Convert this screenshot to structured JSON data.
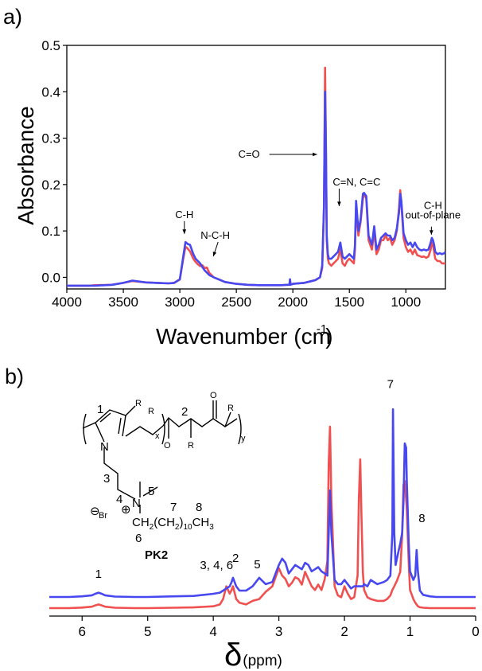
{
  "panel_a_label": "a)",
  "panel_b_label": "b)",
  "chart_data": [
    {
      "type": "line",
      "panel": "a)",
      "xlabel": "Wavenumber (cm",
      "xlabel_sup": "-1",
      "xlabel_end": ")",
      "ylabel": "Absorbance",
      "xlim": [
        4000,
        650
      ],
      "ylim": [
        -0.025,
        0.5
      ],
      "x_ticks": [
        4000,
        3500,
        3000,
        2500,
        2000,
        1500,
        1000
      ],
      "y_ticks": [
        "0.0",
        "0.1",
        "0.2",
        "0.3",
        "0.4",
        "0.5"
      ],
      "annotations": [
        {
          "text": "C=O",
          "x": 1715,
          "y": 0.265
        },
        {
          "text": "C=N, C=C",
          "x": 1590,
          "y": 0.205
        },
        {
          "text": "C-H",
          "x": 2960,
          "y": 0.128
        },
        {
          "text": "N-C-H",
          "x": 2760,
          "y": 0.083
        },
        {
          "text": "C-H",
          "x": 760,
          "y": 0.147
        },
        {
          "text": "out-of-plane",
          "x": 760,
          "y": 0.127
        }
      ],
      "series": [
        {
          "color": "#f05050",
          "x": [
            4000,
            3800,
            3750,
            3600,
            3500,
            3420,
            3300,
            3200,
            3100,
            3050,
            3000,
            2970,
            2950,
            2930,
            2910,
            2880,
            2860,
            2840,
            2820,
            2800,
            2780,
            2760,
            2740,
            2700,
            2650,
            2600,
            2500,
            2400,
            2300,
            2200,
            2100,
            2050,
            2030,
            2025,
            2020,
            2000,
            1900,
            1850,
            1800,
            1760,
            1740,
            1725,
            1715,
            1708,
            1700,
            1690,
            1680,
            1660,
            1640,
            1620,
            1600,
            1580,
            1560,
            1540,
            1520,
            1500,
            1480,
            1460,
            1450,
            1440,
            1420,
            1400,
            1380,
            1370,
            1350,
            1330,
            1300,
            1280,
            1260,
            1240,
            1220,
            1200,
            1180,
            1160,
            1140,
            1120,
            1100,
            1080,
            1060,
            1050,
            1040,
            1020,
            1000,
            980,
            960,
            940,
            920,
            900,
            880,
            860,
            840,
            820,
            800,
            780,
            770,
            760,
            750,
            740,
            720,
            700,
            680,
            660,
            650
          ],
          "y": [
            -0.018,
            -0.018,
            -0.017,
            -0.016,
            -0.012,
            -0.008,
            -0.011,
            -0.012,
            -0.013,
            -0.012,
            -0.005,
            0.04,
            0.066,
            0.062,
            0.056,
            0.04,
            0.033,
            0.028,
            0.024,
            0.026,
            0.02,
            0.021,
            0.01,
            0.0,
            -0.005,
            -0.01,
            -0.014,
            -0.016,
            -0.017,
            -0.017,
            -0.017,
            -0.016,
            -0.016,
            -0.005,
            -0.016,
            -0.014,
            -0.012,
            -0.009,
            -0.006,
            0.0,
            0.02,
            0.15,
            0.452,
            0.3,
            0.08,
            0.04,
            0.03,
            0.025,
            0.03,
            0.035,
            0.04,
            0.06,
            0.03,
            0.025,
            0.035,
            0.04,
            0.035,
            0.03,
            0.06,
            0.15,
            0.09,
            0.12,
            0.17,
            0.18,
            0.17,
            0.08,
            0.06,
            0.1,
            0.05,
            0.06,
            0.08,
            0.08,
            0.09,
            0.08,
            0.085,
            0.07,
            0.08,
            0.1,
            0.15,
            0.188,
            0.16,
            0.085,
            0.065,
            0.055,
            0.06,
            0.05,
            0.06,
            0.048,
            0.046,
            0.044,
            0.045,
            0.042,
            0.045,
            0.06,
            0.075,
            0.07,
            0.055,
            0.04,
            0.035,
            0.035,
            0.03,
            0.03,
            0.03
          ]
        },
        {
          "color": "#4848f0",
          "x": [
            4000,
            3800,
            3750,
            3600,
            3500,
            3420,
            3300,
            3200,
            3100,
            3050,
            3000,
            2970,
            2950,
            2930,
            2910,
            2880,
            2860,
            2840,
            2820,
            2800,
            2780,
            2760,
            2740,
            2700,
            2650,
            2600,
            2500,
            2400,
            2300,
            2200,
            2100,
            2050,
            2030,
            2025,
            2020,
            2000,
            1900,
            1850,
            1800,
            1760,
            1740,
            1725,
            1715,
            1708,
            1700,
            1690,
            1680,
            1660,
            1640,
            1620,
            1600,
            1580,
            1560,
            1540,
            1520,
            1500,
            1480,
            1460,
            1450,
            1440,
            1420,
            1400,
            1380,
            1370,
            1350,
            1330,
            1300,
            1280,
            1260,
            1240,
            1220,
            1200,
            1180,
            1160,
            1140,
            1120,
            1100,
            1080,
            1060,
            1050,
            1040,
            1020,
            1000,
            980,
            960,
            940,
            920,
            900,
            880,
            860,
            840,
            820,
            800,
            780,
            770,
            760,
            750,
            740,
            720,
            700,
            680,
            660,
            650
          ],
          "y": [
            -0.018,
            -0.018,
            -0.018,
            -0.016,
            -0.012,
            -0.007,
            -0.011,
            -0.012,
            -0.013,
            -0.012,
            -0.004,
            0.045,
            0.076,
            0.072,
            0.07,
            0.05,
            0.04,
            0.035,
            0.03,
            0.022,
            0.015,
            0.01,
            0.005,
            0.0,
            -0.005,
            -0.01,
            -0.014,
            -0.016,
            -0.017,
            -0.017,
            -0.017,
            -0.016,
            -0.016,
            -0.004,
            -0.016,
            -0.014,
            -0.012,
            -0.009,
            -0.006,
            0.0,
            0.025,
            0.15,
            0.4,
            0.29,
            0.09,
            0.05,
            0.04,
            0.04,
            0.045,
            0.05,
            0.055,
            0.075,
            0.045,
            0.04,
            0.045,
            0.05,
            0.045,
            0.04,
            0.07,
            0.165,
            0.1,
            0.125,
            0.18,
            0.182,
            0.175,
            0.09,
            0.07,
            0.11,
            0.06,
            0.07,
            0.085,
            0.09,
            0.095,
            0.09,
            0.09,
            0.08,
            0.085,
            0.105,
            0.14,
            0.18,
            0.165,
            0.095,
            0.08,
            0.07,
            0.075,
            0.065,
            0.075,
            0.065,
            0.06,
            0.058,
            0.06,
            0.058,
            0.06,
            0.075,
            0.085,
            0.08,
            0.07,
            0.055,
            0.05,
            0.052,
            0.05,
            0.052,
            0.055
          ]
        }
      ]
    },
    {
      "type": "line",
      "panel": "b)",
      "xlabel": "δ",
      "xlabel_unit": "(ppm)",
      "ylabel": "",
      "xlim": [
        6.5,
        0
      ],
      "x_ticks": [
        6,
        5,
        4,
        3,
        2,
        1,
        0
      ],
      "peak_labels": [
        {
          "text": "1",
          "x": 5.75,
          "y": 0.09
        },
        {
          "text": "3, 4, 6",
          "x": 3.95,
          "y": 0.13
        },
        {
          "text": "2",
          "x": 3.66,
          "y": 0.165
        },
        {
          "text": "5",
          "x": 3.33,
          "y": 0.135
        },
        {
          "text": "7",
          "x": 1.3,
          "y": 0.98
        },
        {
          "text": "8",
          "x": 0.82,
          "y": 0.35
        }
      ],
      "series": [
        {
          "color": "#f05050",
          "x": [
            6.5,
            6.2,
            6.0,
            5.85,
            5.8,
            5.75,
            5.7,
            5.65,
            5.5,
            5.2,
            5.0,
            4.6,
            4.3,
            4.0,
            3.9,
            3.85,
            3.8,
            3.75,
            3.72,
            3.7,
            3.65,
            3.6,
            3.5,
            3.4,
            3.3,
            3.2,
            3.1,
            3.0,
            2.95,
            2.9,
            2.85,
            2.8,
            2.75,
            2.7,
            2.65,
            2.6,
            2.55,
            2.5,
            2.45,
            2.4,
            2.35,
            2.3,
            2.26,
            2.24,
            2.22,
            2.2,
            2.15,
            2.1,
            2.05,
            2.0,
            1.95,
            1.9,
            1.85,
            1.8,
            1.78,
            1.76,
            1.74,
            1.72,
            1.7,
            1.65,
            1.6,
            1.5,
            1.4,
            1.35,
            1.3,
            1.27,
            1.24,
            1.2,
            1.15,
            1.12,
            1.1,
            1.08,
            1.05,
            1.02,
            1.0,
            0.95,
            0.92,
            0.9,
            0.88,
            0.85,
            0.8,
            0.7,
            0.6,
            0.4,
            0.2,
            0.0
          ],
          "y": [
            0.0,
            0.0,
            0.003,
            0.008,
            0.015,
            0.02,
            0.015,
            0.008,
            0.002,
            0.0,
            0.0,
            0.002,
            0.004,
            0.01,
            0.02,
            0.05,
            0.12,
            0.08,
            0.1,
            0.12,
            0.05,
            0.03,
            0.02,
            0.04,
            0.05,
            0.09,
            0.12,
            0.22,
            0.18,
            0.16,
            0.12,
            0.14,
            0.17,
            0.16,
            0.13,
            0.2,
            0.16,
            0.12,
            0.1,
            0.13,
            0.1,
            0.16,
            0.26,
            0.8,
            1.0,
            0.6,
            0.12,
            0.07,
            0.06,
            0.12,
            0.08,
            0.05,
            0.06,
            0.18,
            0.6,
            0.82,
            0.5,
            0.2,
            0.1,
            0.06,
            0.05,
            0.04,
            0.04,
            0.05,
            0.07,
            0.1,
            0.12,
            0.15,
            0.2,
            0.4,
            0.68,
            0.7,
            0.55,
            0.25,
            0.1,
            0.05,
            0.03,
            0.02,
            0.01,
            0.005,
            0.002,
            0.0,
            0.0,
            0.0,
            0.0,
            0.0
          ]
        },
        {
          "color": "#4848f0",
          "x": [
            6.5,
            6.2,
            6.0,
            5.85,
            5.8,
            5.75,
            5.7,
            5.65,
            5.5,
            5.2,
            5.0,
            4.6,
            4.3,
            4.0,
            3.9,
            3.85,
            3.8,
            3.75,
            3.72,
            3.7,
            3.65,
            3.6,
            3.5,
            3.4,
            3.3,
            3.2,
            3.1,
            3.0,
            2.95,
            2.9,
            2.85,
            2.8,
            2.75,
            2.7,
            2.65,
            2.6,
            2.55,
            2.5,
            2.45,
            2.4,
            2.35,
            2.3,
            2.26,
            2.24,
            2.22,
            2.2,
            2.15,
            2.1,
            2.05,
            2.0,
            1.95,
            1.9,
            1.85,
            1.8,
            1.78,
            1.76,
            1.74,
            1.72,
            1.7,
            1.65,
            1.6,
            1.5,
            1.4,
            1.35,
            1.3,
            1.27,
            1.26,
            1.24,
            1.22,
            1.2,
            1.15,
            1.12,
            1.1,
            1.08,
            1.06,
            1.05,
            1.02,
            1.0,
            0.95,
            0.92,
            0.9,
            0.88,
            0.85,
            0.8,
            0.7,
            0.6,
            0.4,
            0.2,
            0.0
          ],
          "y": [
            0.0,
            0.0,
            0.003,
            0.008,
            0.015,
            0.02,
            0.015,
            0.008,
            0.002,
            0.0,
            0.0,
            0.003,
            0.005,
            0.015,
            0.02,
            0.03,
            0.04,
            0.05,
            0.07,
            0.09,
            0.05,
            0.03,
            0.03,
            0.05,
            0.09,
            0.06,
            0.07,
            0.15,
            0.18,
            0.16,
            0.11,
            0.13,
            0.15,
            0.14,
            0.13,
            0.16,
            0.15,
            0.12,
            0.13,
            0.14,
            0.12,
            0.11,
            0.1,
            0.3,
            0.5,
            0.3,
            0.08,
            0.06,
            0.06,
            0.08,
            0.06,
            0.04,
            0.05,
            0.05,
            0.05,
            0.05,
            0.05,
            0.05,
            0.06,
            0.05,
            0.08,
            0.06,
            0.07,
            0.08,
            0.1,
            0.3,
            0.88,
            0.3,
            0.15,
            0.18,
            0.25,
            0.3,
            0.45,
            0.72,
            0.7,
            0.55,
            0.25,
            0.12,
            0.08,
            0.1,
            0.22,
            0.12,
            0.03,
            0.01,
            0.003,
            0.0,
            0.0,
            0.0,
            0.0
          ]
        }
      ]
    }
  ],
  "structure": {
    "ring_num": "1",
    "R_top": "R",
    "R_chain1": "R",
    "R_chain2": "R",
    "R_right": "R",
    "O1": "O",
    "O2": "O",
    "num2": "2",
    "x_sub": "x",
    "y_sub": "y",
    "N": "N",
    "num3": "3",
    "num4": "4",
    "num5": "5",
    "num6": "6",
    "num7": "7",
    "num8": "8",
    "plus": "⊕",
    "minus": "⊖",
    "Br": "Br",
    "chain_ch2": "CH",
    "chain_sub2": "2",
    "chain_paren_open": "(",
    "chain_ch2_b": "CH",
    "chain_sub2_b": "2",
    "chain_paren_close": ")",
    "chain_sub10": "10",
    "chain_ch3": "CH",
    "chain_sub3": "3",
    "name": "PK2"
  }
}
